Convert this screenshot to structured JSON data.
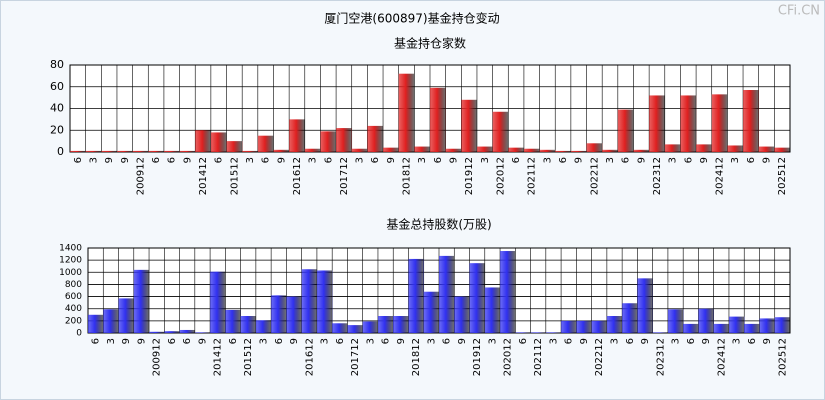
{
  "title": "厦门空港(600897)基金持仓变动",
  "watermark": "CFi.CN",
  "chart_data": [
    {
      "type": "bar",
      "title": "基金持仓家数",
      "color": "#e02020",
      "grid": true,
      "categories": [
        "6",
        "3",
        "9",
        "9",
        "200912",
        "6",
        "6",
        "9",
        "201412",
        "6",
        "201512",
        "3",
        "6",
        "9",
        "201612",
        "3",
        "6",
        "201712",
        "3",
        "6",
        "9",
        "201812",
        "3",
        "6",
        "9",
        "201912",
        "3",
        "202012",
        "6",
        "202112",
        "3",
        "6",
        "9",
        "202212",
        "3",
        "6",
        "9",
        "202312",
        "3",
        "6",
        "9",
        "202412",
        "3",
        "6",
        "9",
        "202512"
      ],
      "values": [
        1,
        1,
        1,
        1,
        1,
        1,
        1,
        1,
        20,
        18,
        10,
        1,
        15,
        2,
        30,
        3,
        19,
        22,
        3,
        24,
        4,
        72,
        5,
        59,
        3,
        48,
        5,
        37,
        4,
        3,
        2,
        1,
        1,
        8,
        2,
        39,
        2,
        52,
        7,
        52,
        7,
        53,
        6,
        57,
        5,
        4
      ],
      "ylim": [
        0,
        80
      ],
      "yticks": [
        0,
        20,
        40,
        60,
        80
      ]
    },
    {
      "type": "bar",
      "title": "基金总持股数(万股)",
      "color": "#3030f0",
      "grid": true,
      "categories": [
        "6",
        "3",
        "9",
        "9",
        "200912",
        "6",
        "6",
        "9",
        "201412",
        "6",
        "201512",
        "3",
        "6",
        "9",
        "201612",
        "3",
        "6",
        "201712",
        "3",
        "6",
        "9",
        "201812",
        "3",
        "6",
        "9",
        "201912",
        "3",
        "202012",
        "6",
        "202112",
        "3",
        "6",
        "9",
        "202212",
        "3",
        "6",
        "9",
        "202312",
        "3",
        "6",
        "9",
        "202412",
        "3",
        "6",
        "9",
        "202512"
      ],
      "values": [
        300,
        390,
        570,
        1040,
        20,
        30,
        50,
        10,
        1010,
        380,
        280,
        210,
        620,
        600,
        1050,
        1030,
        160,
        130,
        190,
        280,
        280,
        1220,
        680,
        1270,
        600,
        1150,
        750,
        1350,
        10,
        10,
        10,
        200,
        200,
        200,
        280,
        490,
        900,
        10,
        390,
        150,
        400,
        150,
        270,
        150,
        240,
        260
      ],
      "ylim": [
        0,
        1400
      ],
      "yticks": [
        0,
        200,
        400,
        600,
        800,
        1000,
        1200,
        1400
      ]
    }
  ]
}
